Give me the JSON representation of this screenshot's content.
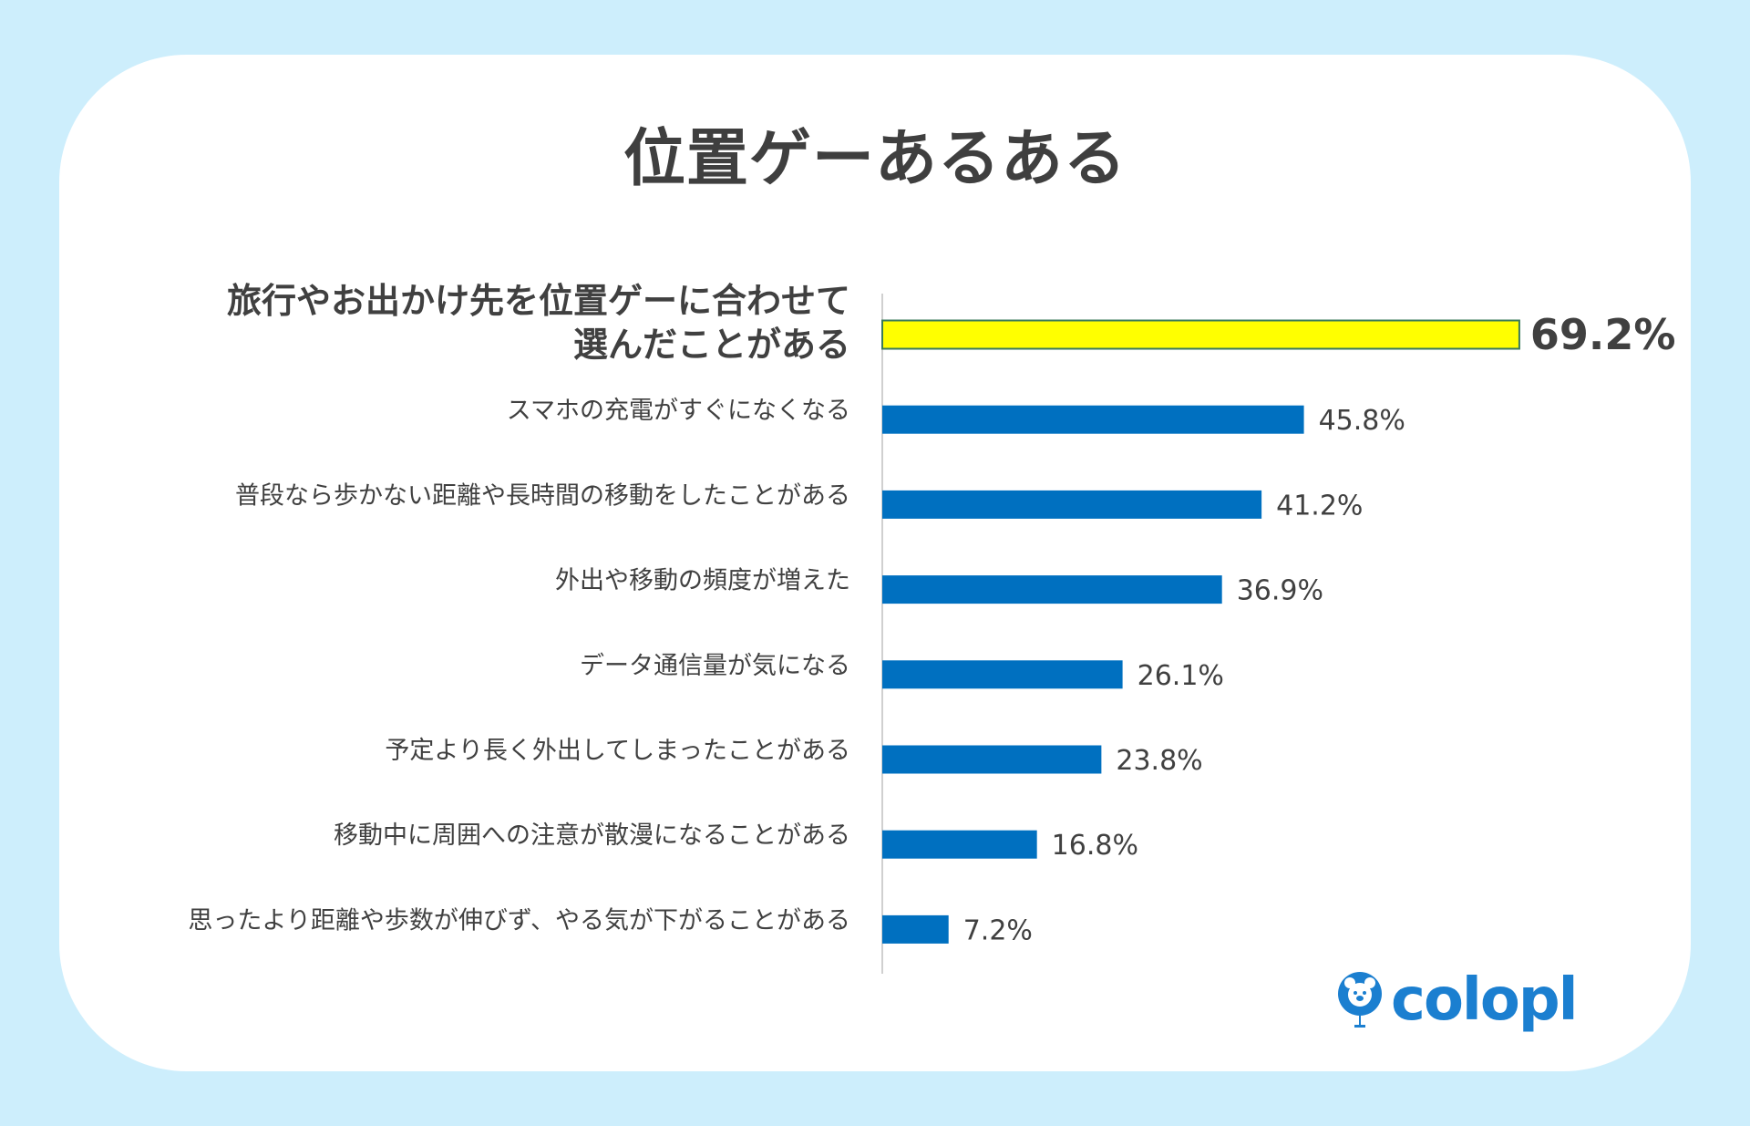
{
  "chart_data": {
    "type": "bar",
    "orientation": "horizontal",
    "title": "位置ゲーあるある",
    "categories": [
      "旅行やお出かけ先を位置ゲーに合わせて\n選んだことがある",
      "スマホの充電がすぐになくなる",
      "普段なら歩かない距離や長時間の移動をしたことがある",
      "外出や移動の頻度が増えた",
      "データ通信量が気になる",
      "予定より長く外出してしまったことがある",
      "移動中に周囲への注意が散漫になることがある",
      "思ったより距離や歩数が伸びず、やる気が下がることがある"
    ],
    "values": [
      69.2,
      45.8,
      41.2,
      36.9,
      26.1,
      23.8,
      16.8,
      7.2
    ],
    "value_labels": [
      "69.2%",
      "45.8%",
      "41.2%",
      "36.9%",
      "26.1%",
      "23.8%",
      "16.8%",
      "7.2%"
    ],
    "highlight_index": 0,
    "colors": {
      "bar": "#0070c0",
      "highlight": "#ffff00",
      "highlight_border": "#3a7a5a",
      "text": "#404040",
      "background": "#cdeefc"
    },
    "grid": false,
    "xlim": [
      0,
      70
    ]
  },
  "logo": {
    "text": "colopl",
    "color": "#1b7fd0"
  }
}
